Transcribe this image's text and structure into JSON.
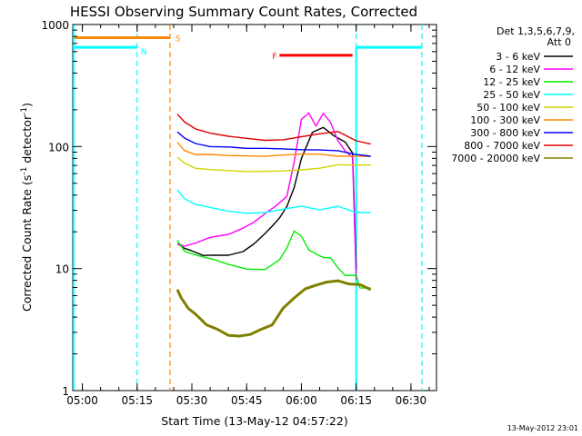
{
  "chart_data": {
    "type": "line",
    "title": "HESSI Observing Summary Count Rates, Corrected",
    "xlabel": "Start Time (13-May-12 04:57:22)",
    "ylabel": "Corrected Count Rate (s⁻¹ detector⁻¹)",
    "ylabel_main": "Corrected Count Rate (s",
    "ylabel_sup1": "-1",
    "ylabel_mid": " detector",
    "ylabel_sup2": "-1",
    "ylabel_end": ")",
    "yscale": "log",
    "xlim": [
      "04:57:22",
      "06:37:00"
    ],
    "ylim": [
      1,
      1000
    ],
    "x_ticks": [
      "05:00",
      "05:15",
      "05:30",
      "05:45",
      "06:00",
      "06:15",
      "06:30"
    ],
    "y_ticks": [
      "1",
      "10",
      "100",
      "1000"
    ],
    "timestamp": "13-May-2012 23:01",
    "legend": {
      "placement": "right",
      "header1": "Det 1,3,5,6,7,9,",
      "header2": "Att 0"
    },
    "series": [
      {
        "name": "3 - 6 keV",
        "color": "#000000",
        "x": [
          "05:26",
          "05:28",
          "05:30",
          "05:33",
          "05:36",
          "05:40",
          "05:44",
          "05:47",
          "05:50",
          "05:52",
          "05:54",
          "05:56",
          "05:58",
          "06:00",
          "06:03",
          "06:06",
          "06:09",
          "06:12",
          "06:14",
          "06:15"
        ],
        "y": [
          16,
          15,
          14,
          13,
          13,
          13,
          14,
          16,
          19,
          22,
          26,
          32,
          45,
          80,
          130,
          145,
          125,
          110,
          90,
          10
        ]
      },
      {
        "name": "6 - 12 keV",
        "color": "#ff00ff",
        "x": [
          "05:26",
          "05:28",
          "05:31",
          "05:35",
          "05:40",
          "05:44",
          "05:47",
          "05:50",
          "05:53",
          "05:56",
          "05:58",
          "06:00",
          "06:02",
          "06:04",
          "06:06",
          "06:08",
          "06:10",
          "06:12",
          "06:14",
          "06:15"
        ],
        "y": [
          16,
          15,
          16,
          18,
          19,
          21,
          24,
          28,
          33,
          40,
          75,
          170,
          190,
          150,
          190,
          160,
          110,
          90,
          80,
          8
        ]
      },
      {
        "name": "12 - 25 keV",
        "color": "#00ee00",
        "x": [
          "05:26",
          "05:28",
          "05:32",
          "05:36",
          "05:40",
          "05:45",
          "05:50",
          "05:54",
          "05:56",
          "05:58",
          "06:00",
          "06:02",
          "06:04",
          "06:06",
          "06:08",
          "06:10",
          "06:12",
          "06:15",
          "06:16",
          "06:19"
        ],
        "y": [
          17,
          14,
          13,
          12,
          11,
          10,
          10,
          12,
          15,
          20,
          18,
          14,
          13,
          12,
          12,
          10,
          9,
          9,
          7,
          7
        ]
      },
      {
        "name": "25 - 50 keV",
        "color": "#00ffff",
        "x": [
          "05:26",
          "05:28",
          "05:31",
          "05:35",
          "05:40",
          "05:45",
          "05:50",
          "05:55",
          "06:00",
          "06:05",
          "06:10",
          "06:15",
          "06:19"
        ],
        "y": [
          45,
          38,
          33,
          31,
          29,
          28,
          28,
          30,
          32,
          31,
          33,
          29,
          29
        ]
      },
      {
        "name": "50 - 100 keV",
        "color": "#d4d400",
        "x": [
          "05:26",
          "05:28",
          "05:31",
          "05:35",
          "05:40",
          "05:45",
          "05:50",
          "05:55",
          "06:00",
          "06:05",
          "06:10",
          "06:15",
          "06:19"
        ],
        "y": [
          80,
          72,
          68,
          66,
          64,
          63,
          63,
          64,
          66,
          68,
          70,
          70,
          70
        ]
      },
      {
        "name": "100 - 300 keV",
        "color": "#ff8800",
        "x": [
          "05:26",
          "05:28",
          "05:31",
          "05:35",
          "05:40",
          "05:45",
          "05:50",
          "05:55",
          "06:00",
          "06:05",
          "06:10",
          "06:15",
          "06:19"
        ],
        "y": [
          110,
          95,
          88,
          85,
          84,
          83,
          83,
          84,
          85,
          86,
          85,
          84,
          84
        ]
      },
      {
        "name": "300 - 800 keV",
        "color": "#0000ff",
        "x": [
          "05:26",
          "05:28",
          "05:31",
          "05:35",
          "05:40",
          "05:45",
          "05:50",
          "05:55",
          "06:00",
          "06:05",
          "06:10",
          "06:15",
          "06:19"
        ],
        "y": [
          130,
          115,
          105,
          102,
          100,
          98,
          97,
          96,
          95,
          94,
          92,
          85,
          82
        ]
      },
      {
        "name": "800 - 7000 keV",
        "color": "#dd0000",
        "x": [
          "05:26",
          "05:28",
          "05:31",
          "05:35",
          "05:40",
          "05:45",
          "05:50",
          "05:55",
          "06:00",
          "06:05",
          "06:10",
          "06:15",
          "06:19"
        ],
        "y": [
          185,
          160,
          140,
          128,
          120,
          115,
          112,
          112,
          118,
          125,
          130,
          112,
          105
        ]
      },
      {
        "name": "7000 - 20000 keV",
        "color": "#808000",
        "x": [
          "05:26",
          "05:27",
          "05:29",
          "05:31",
          "05:34",
          "05:37",
          "05:40",
          "05:43",
          "05:46",
          "05:49",
          "05:52",
          "05:55",
          "05:58",
          "06:01",
          "06:04",
          "06:07",
          "06:10",
          "06:13",
          "06:16",
          "06:19"
        ],
        "y": [
          6.5,
          5.5,
          4.5,
          4,
          3.5,
          3.2,
          3.0,
          2.8,
          2.9,
          3.2,
          3.6,
          4.5,
          5.5,
          6.5,
          7,
          7.5,
          7.5,
          7,
          7,
          7
        ]
      }
    ],
    "flags": [
      {
        "label": "N",
        "color": "#00ffff",
        "y": 650,
        "segments": [
          [
            "04:57:22",
            "05:15"
          ],
          [
            "06:15",
            "06:33"
          ]
        ],
        "boundaries": [
          "05:15",
          "06:15",
          "06:33"
        ]
      },
      {
        "label": "S",
        "color": "#ff8800",
        "y": 780,
        "segments": [
          [
            "04:57:22",
            "05:24"
          ]
        ],
        "boundaries": [
          "05:24"
        ]
      },
      {
        "label": "F",
        "color": "#ff0000",
        "y": 560,
        "segments": [
          [
            "05:54",
            "06:14"
          ]
        ],
        "boundaries": []
      }
    ]
  }
}
